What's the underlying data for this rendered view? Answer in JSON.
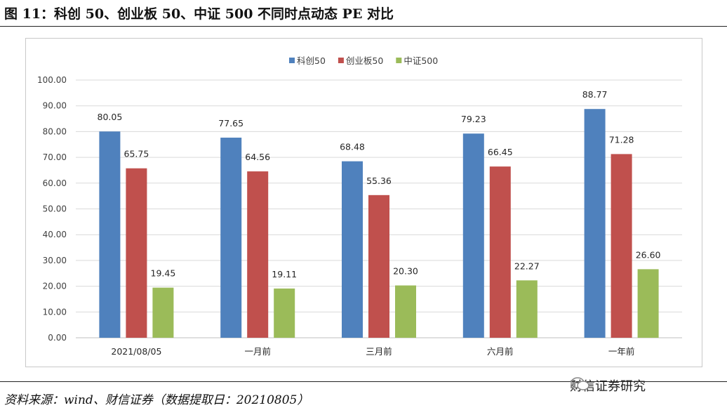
{
  "page": {
    "title": "图 11：科创 50、创业板 50、中证 500 不同时点动态 PE 对比",
    "source": "资料来源：wind、财信证券（数据提取日：20210805）",
    "watermark": "财信证券研究"
  },
  "chart_data": {
    "type": "bar",
    "categories": [
      "2021/08/05",
      "一月前",
      "三月前",
      "六月前",
      "一年前"
    ],
    "series": [
      {
        "name": "科创50",
        "color": "#4F81BD",
        "values": [
          80.05,
          77.65,
          68.48,
          79.23,
          88.77
        ]
      },
      {
        "name": "创业板50",
        "color": "#C0504D",
        "values": [
          65.75,
          64.56,
          55.36,
          66.45,
          71.28
        ]
      },
      {
        "name": "中证500",
        "color": "#9BBB59",
        "values": [
          19.45,
          19.11,
          20.3,
          22.27,
          26.6
        ]
      }
    ],
    "ylim": [
      0,
      100
    ],
    "yticks": [
      0,
      10,
      20,
      30,
      40,
      50,
      60,
      70,
      80,
      90,
      100
    ],
    "ytick_labels": [
      "0.00",
      "10.00",
      "20.00",
      "30.00",
      "40.00",
      "50.00",
      "60.00",
      "70.00",
      "80.00",
      "90.00",
      "100.00"
    ],
    "grid": true,
    "legend": "top-center",
    "data_labels": true
  }
}
